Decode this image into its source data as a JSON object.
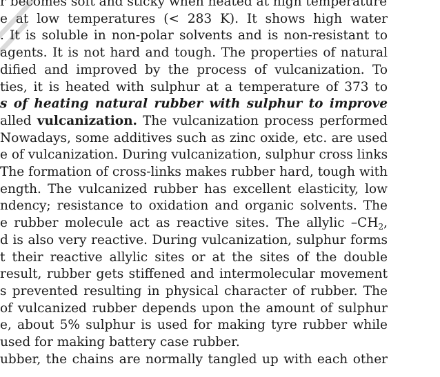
{
  "document": {
    "lines": [
      {
        "runs": [
          {
            "t": "r becomes soft and sticky when heated at high temperatures",
            "s": "n"
          }
        ]
      },
      {
        "runs": [
          {
            "t": "e at low temperatures (< 283 K). It shows high water",
            "s": "n"
          }
        ]
      },
      {
        "runs": [
          {
            "t": ". It is soluble in non-polar solvents and is non-resistant to",
            "s": "n"
          }
        ]
      },
      {
        "runs": [
          {
            "t": "agents. It is not hard and tough. The properties of natural",
            "s": "n"
          }
        ]
      },
      {
        "runs": [
          {
            "t": "dified and improved by the process of vulcanization. To",
            "s": "n"
          }
        ]
      },
      {
        "runs": [
          {
            "t": "ties, it is heated with sulphur at a temperature of 373 to",
            "s": "n"
          }
        ]
      },
      {
        "runs": [
          {
            "t": "s of heating natural rubber with sulphur to improve",
            "s": "bi"
          }
        ]
      },
      {
        "runs": [
          {
            "t": "alled ",
            "s": "n"
          },
          {
            "t": "vulcanization.",
            "s": "b"
          },
          {
            "t": " The vulcanization process performed",
            "s": "n"
          }
        ]
      },
      {
        "runs": [
          {
            "t": " Nowadays, some additives such as zinc oxide, etc. are used",
            "s": "n"
          }
        ]
      },
      {
        "runs": [
          {
            "t": "e of vulcanization. During vulcanization, sulphur cross links",
            "s": "n"
          }
        ]
      },
      {
        "runs": [
          {
            "t": "The formation of cross-links makes rubber hard, tough with",
            "s": "n"
          }
        ]
      },
      {
        "runs": [
          {
            "t": "ength. The vulcanized rubber has excellent elasticity, low",
            "s": "n"
          }
        ]
      },
      {
        "runs": [
          {
            "t": "ndency; resistance to oxidation and organic solvents. The",
            "s": "n"
          }
        ]
      },
      {
        "runs": [
          {
            "t": "e rubber molecule act as reactive sites. The allylic –CH",
            "s": "n"
          },
          {
            "t": "2",
            "s": "sub"
          },
          {
            "t": ",",
            "s": "n"
          }
        ]
      },
      {
        "runs": [
          {
            "t": "d is also very reactive. During vulcanization, sulphur forms",
            "s": "n"
          }
        ]
      },
      {
        "runs": [
          {
            "t": "t their reactive allylic sites or at the sites of the double",
            "s": "n"
          }
        ]
      },
      {
        "runs": [
          {
            "t": "result, rubber gets stiffened and intermolecular movement",
            "s": "n"
          }
        ]
      },
      {
        "runs": [
          {
            "t": "s prevented resulting in physical character of rubber. The",
            "s": "n"
          }
        ]
      },
      {
        "runs": [
          {
            "t": "of vulcanized rubber depends upon the amount of sulphur",
            "s": "n"
          }
        ]
      },
      {
        "runs": [
          {
            "t": "e, about 5% sulphur is used for making tyre rubber while",
            "s": "n"
          }
        ]
      },
      {
        "runs": [
          {
            "t": "used for making battery case rubber.",
            "s": "n"
          }
        ],
        "last": true
      },
      {
        "runs": [
          {
            "t": "ubber, the chains are normally tangled up with each other",
            "s": "n"
          }
        ]
      },
      {
        "runs": [
          {
            "t": "                                    ",
            "s": "n"
          }
        ],
        "last": true
      }
    ]
  }
}
